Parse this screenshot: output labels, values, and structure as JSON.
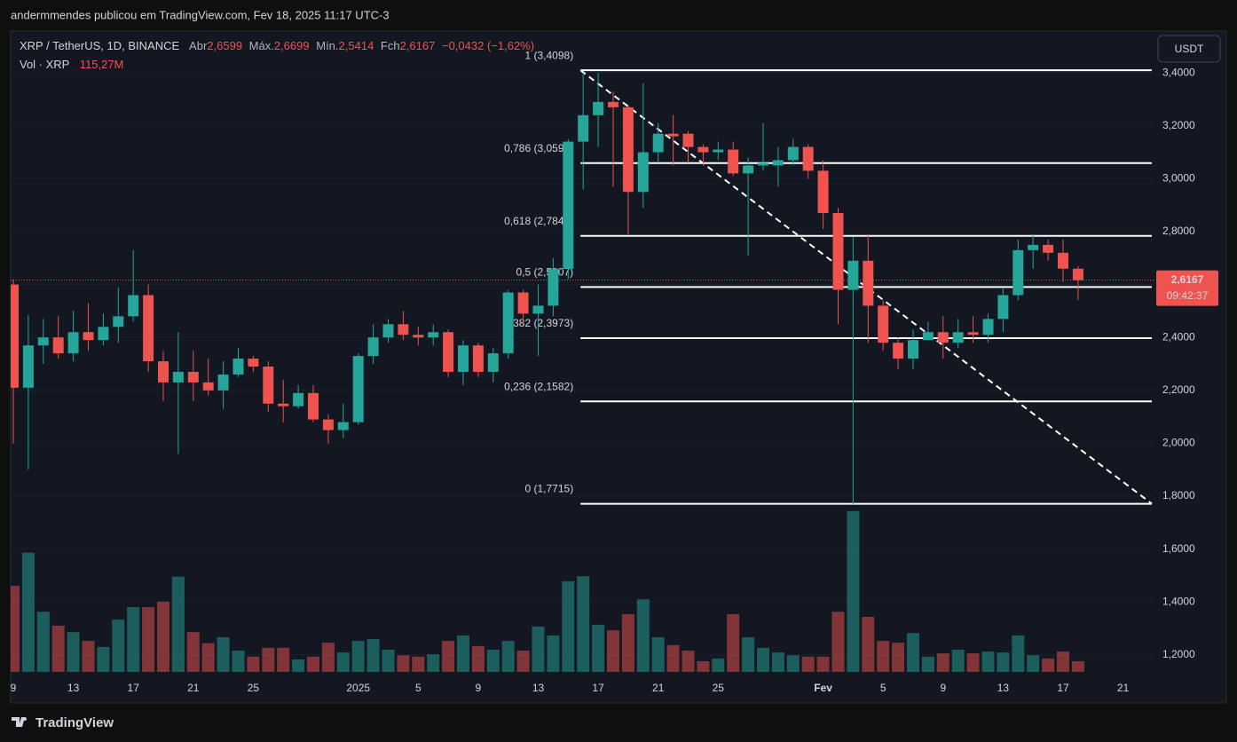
{
  "header": {
    "publisher": "andermmendes publicou em TradingView.com, Fev 18, 2025 11:17 UTC-3"
  },
  "chart_data": {
    "type": "candlestick",
    "legend": {
      "symbol": "XRP / TetherUS, 1D, BINANCE",
      "open_label": "Abr",
      "open": "2,6599",
      "high_label": "Máx.",
      "high": "2,6699",
      "low_label": "Mín.",
      "low": "2,5414",
      "close_label": "Fch",
      "close": "2,6167",
      "change": "−0,0432 (−1,62%)",
      "volume_label": "Vol · XRP",
      "volume": "115,27M"
    },
    "currency": "USDT",
    "categories": [
      "9",
      null,
      null,
      null,
      "13",
      null,
      null,
      null,
      "17",
      null,
      null,
      null,
      "21",
      null,
      null,
      null,
      "25",
      null,
      null,
      null,
      null,
      null,
      null,
      "2025",
      null,
      null,
      null,
      "5",
      null,
      null,
      null,
      "9",
      null,
      null,
      null,
      "13",
      null,
      null,
      null,
      "17",
      null,
      null,
      null,
      "21",
      null,
      null,
      null,
      "25",
      null,
      null,
      null,
      null,
      null,
      null,
      "Fev",
      null,
      null,
      null,
      "5",
      null,
      null,
      null,
      "9",
      null,
      null,
      null,
      "13",
      null,
      null,
      null,
      "17",
      null,
      null,
      null,
      "21"
    ],
    "open": [
      2.6,
      2.21,
      2.37,
      2.4,
      2.34,
      2.42,
      2.39,
      2.44,
      2.48,
      2.56,
      2.31,
      2.23,
      2.27,
      2.23,
      2.2,
      2.26,
      2.32,
      2.29,
      2.15,
      2.14,
      2.19,
      2.09,
      2.05,
      2.08,
      2.33,
      2.4,
      2.45,
      2.41,
      2.4,
      2.42,
      2.27,
      2.37,
      2.27,
      2.34,
      2.57,
      2.49,
      2.52,
      2.66,
      3.14,
      3.24,
      3.29,
      3.27,
      2.95,
      3.1,
      3.17,
      3.17,
      3.12,
      3.1,
      3.11,
      3.02,
      3.05,
      3.05,
      3.07,
      3.12,
      3.03,
      2.87,
      2.58,
      2.69,
      2.52,
      2.38,
      2.32,
      2.39,
      2.42,
      2.38,
      2.42,
      2.41,
      2.47,
      2.56,
      2.73,
      2.75,
      2.72,
      2.6599,
      null,
      null,
      null
    ],
    "high": [
      2.62,
      2.485,
      2.47,
      2.48,
      2.5,
      2.53,
      2.49,
      2.59,
      2.73,
      2.6,
      2.35,
      2.42,
      2.35,
      2.32,
      2.31,
      2.36,
      2.33,
      2.31,
      2.24,
      2.22,
      2.22,
      2.11,
      2.15,
      2.34,
      2.45,
      2.47,
      2.5,
      2.44,
      2.45,
      2.43,
      2.39,
      2.38,
      2.36,
      2.58,
      2.58,
      2.6,
      2.7,
      3.15,
      3.4,
      3.4,
      3.33,
      3.28,
      3.36,
      3.21,
      3.24,
      3.18,
      3.13,
      3.14,
      3.14,
      3.08,
      3.21,
      3.12,
      3.15,
      3.13,
      3.07,
      2.89,
      2.78,
      2.79,
      2.54,
      2.4,
      2.43,
      2.46,
      2.48,
      2.47,
      2.48,
      2.49,
      2.59,
      2.77,
      2.79,
      2.77,
      2.77,
      2.6699,
      null,
      null,
      null
    ],
    "low": [
      2.0,
      1.9,
      2.3,
      2.32,
      2.31,
      2.35,
      2.37,
      2.38,
      2.46,
      2.27,
      2.16,
      1.96,
      2.16,
      2.18,
      2.13,
      2.25,
      2.27,
      2.12,
      2.08,
      2.13,
      2.08,
      2.0,
      2.02,
      2.07,
      2.3,
      2.38,
      2.39,
      2.37,
      2.37,
      2.25,
      2.22,
      2.25,
      2.23,
      2.32,
      2.45,
      2.33,
      2.48,
      2.62,
      2.96,
      3.12,
      2.97,
      2.79,
      2.89,
      3.06,
      3.05,
      3.06,
      3.05,
      3.07,
      3.01,
      2.71,
      3.03,
      2.97,
      3.05,
      3.0,
      2.81,
      2.45,
      1.77,
      2.38,
      2.35,
      2.28,
      2.28,
      2.39,
      2.32,
      2.36,
      2.38,
      2.38,
      2.42,
      2.54,
      2.66,
      2.69,
      2.61,
      2.5414,
      null,
      null,
      null
    ],
    "close": [
      2.21,
      2.37,
      2.4,
      2.34,
      2.42,
      2.39,
      2.44,
      2.48,
      2.56,
      2.31,
      2.23,
      2.27,
      2.23,
      2.2,
      2.26,
      2.32,
      2.29,
      2.15,
      2.14,
      2.19,
      2.09,
      2.05,
      2.08,
      2.33,
      2.4,
      2.45,
      2.41,
      2.4,
      2.42,
      2.27,
      2.37,
      2.27,
      2.34,
      2.57,
      2.49,
      2.52,
      2.66,
      3.14,
      3.24,
      3.29,
      3.27,
      2.95,
      3.1,
      3.17,
      3.16,
      3.12,
      3.1,
      3.11,
      3.02,
      3.05,
      3.06,
      3.07,
      3.12,
      3.03,
      2.87,
      2.58,
      2.69,
      2.52,
      2.38,
      2.32,
      2.39,
      2.42,
      2.38,
      2.42,
      2.41,
      2.47,
      2.56,
      2.73,
      2.75,
      2.72,
      2.66,
      2.6167,
      null,
      null,
      null
    ],
    "volume": [
      930,
      1290,
      650,
      500,
      430,
      335,
      270,
      565,
      700,
      700,
      760,
      1030,
      430,
      310,
      375,
      230,
      165,
      260,
      260,
      135,
      165,
      315,
      210,
      335,
      355,
      240,
      180,
      165,
      190,
      335,
      395,
      280,
      240,
      335,
      230,
      490,
      395,
      980,
      1035,
      510,
      450,
      625,
      785,
      375,
      290,
      230,
      115,
      145,
      625,
      375,
      260,
      210,
      180,
      165,
      165,
      650,
      1740,
      595,
      335,
      315,
      420,
      165,
      200,
      240,
      200,
      220,
      210,
      395,
      180,
      145,
      220,
      115.27,
      null,
      null,
      null
    ],
    "colors": {
      "up": "#26a69a",
      "down": "#ef5350"
    },
    "ylim": [
      1.126,
      3.558
    ],
    "yticks": [
      {
        "value": 1.2,
        "label": "1,2000"
      },
      {
        "value": 1.4,
        "label": "1,4000"
      },
      {
        "value": 1.6,
        "label": "1,6000"
      },
      {
        "value": 1.8,
        "label": "1,8000"
      },
      {
        "value": 2.0,
        "label": "2,0000"
      },
      {
        "value": 2.2,
        "label": "2,2000"
      },
      {
        "value": 2.4,
        "label": "2,4000"
      },
      {
        "value": 2.6,
        "label": "2,6000"
      },
      {
        "value": 2.8,
        "label": "2,8000"
      },
      {
        "value": 3.0,
        "label": "3,0000"
      },
      {
        "value": 3.2,
        "label": "3,2000"
      },
      {
        "value": 3.4,
        "label": "3,4000"
      }
    ],
    "fib_levels": [
      {
        "value": 3.4098,
        "label": "1 (3,4098)"
      },
      {
        "value": 3.0592,
        "label": "0,786 (3,0592)"
      },
      {
        "value": 2.784,
        "label": "0,618 (2,7840)"
      },
      {
        "value": 2.5907,
        "label": "0,5 (2,5907)"
      },
      {
        "value": 2.3973,
        "label": "0,382 (2,3973)"
      },
      {
        "value": 2.1582,
        "label": "0,236 (2,1582)"
      },
      {
        "value": 1.7715,
        "label": "0 (1,7715)"
      }
    ],
    "last_price": {
      "value": 2.6167,
      "label": "2,6167"
    },
    "countdown": "09:42:37"
  },
  "footer": {
    "brand": "TradingView"
  }
}
